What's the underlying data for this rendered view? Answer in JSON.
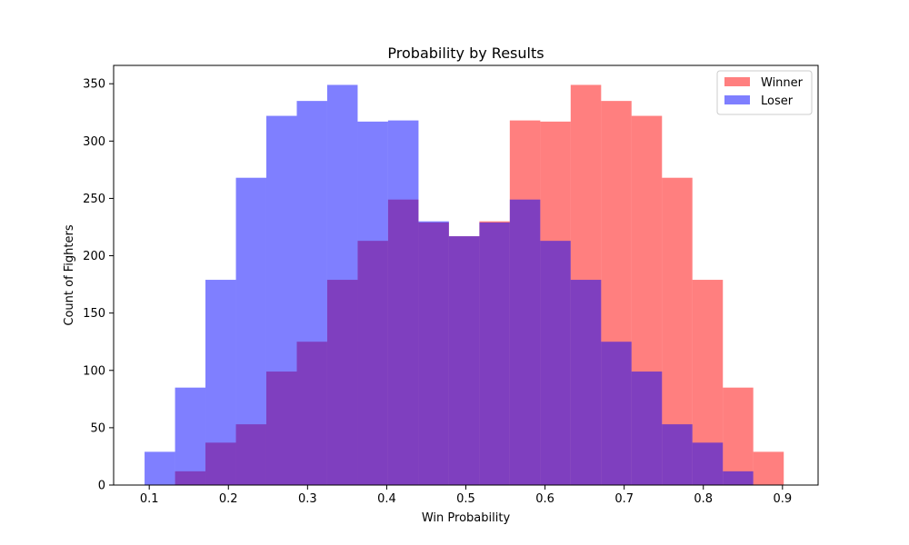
{
  "chart_data": {
    "type": "bar",
    "title": "Probability by Results",
    "xlabel": "Win Probability",
    "ylabel": "Count of Fighters",
    "xlim": [
      0.055,
      0.945
    ],
    "ylim": [
      0,
      366
    ],
    "xticks": [
      0.1,
      0.2,
      0.3,
      0.4,
      0.5,
      0.6,
      0.7,
      0.8,
      0.9
    ],
    "xtick_labels": [
      "0.1",
      "0.2",
      "0.3",
      "0.4",
      "0.5",
      "0.6",
      "0.7",
      "0.8",
      "0.9"
    ],
    "yticks": [
      0,
      50,
      100,
      150,
      200,
      250,
      300,
      350
    ],
    "ytick_labels": [
      "0",
      "50",
      "100",
      "150",
      "200",
      "250",
      "300",
      "350"
    ],
    "grid": false,
    "legend_position": "top-right",
    "series": [
      {
        "name": "Winner",
        "color": "#ff0000",
        "alpha": 0.5,
        "bins": [
          0.1326,
          0.171,
          0.2095,
          0.2479,
          0.2864,
          0.3248,
          0.3633,
          0.4017,
          0.4402,
          0.4786,
          0.5171,
          0.5555,
          0.594,
          0.6324,
          0.6709,
          0.7093,
          0.7478,
          0.7862,
          0.8247,
          0.8631,
          0.9016
        ],
        "counts": [
          12,
          37,
          53,
          99,
          125,
          179,
          213,
          249,
          229,
          217,
          230,
          318,
          317,
          349,
          335,
          322,
          268,
          179,
          85,
          29
        ]
      },
      {
        "name": "Loser",
        "color": "#0000ff",
        "alpha": 0.5,
        "bins": [
          0.0941,
          0.1326,
          0.171,
          0.2095,
          0.2479,
          0.2864,
          0.3248,
          0.3633,
          0.4017,
          0.4402,
          0.4786,
          0.5171,
          0.5555,
          0.594,
          0.6324,
          0.6709,
          0.7093,
          0.7478,
          0.7862,
          0.8247,
          0.8631
        ],
        "counts": [
          29,
          85,
          179,
          268,
          322,
          335,
          349,
          317,
          318,
          230,
          217,
          229,
          249,
          213,
          179,
          125,
          99,
          53,
          37,
          12
        ]
      }
    ]
  }
}
